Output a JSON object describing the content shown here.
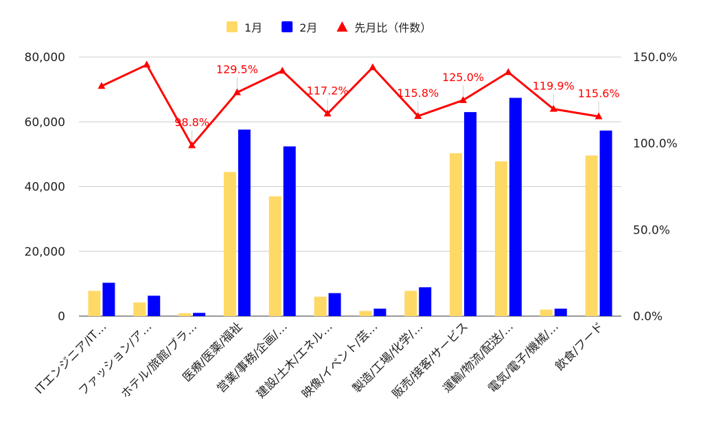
{
  "chart_data": {
    "type": "bar",
    "categories": [
      "ITエンジニア/IT…",
      "ファッション/ア…",
      "ホテル/旅館/ブラ…",
      "医療/医薬/福祉",
      "営業/事務/企画/…",
      "建設/土木/エネル…",
      "映像/イベント/芸…",
      "製造/工場/化学/…",
      "販売/接客/サービス",
      "運輸/物流/配送/…",
      "電気/電子/機械/…",
      "飲食/フード"
    ],
    "series": [
      {
        "name": "1月",
        "type": "bar",
        "axis": "left",
        "color": "#FFD966",
        "values": [
          7800,
          4200,
          900,
          44500,
          37000,
          6000,
          1600,
          7800,
          50300,
          47800,
          2000,
          49600
        ]
      },
      {
        "name": "2月",
        "type": "bar",
        "axis": "left",
        "color": "#0000FF",
        "values": [
          10300,
          6300,
          1000,
          57600,
          52400,
          7100,
          2300,
          8900,
          63000,
          67400,
          2300,
          57300
        ]
      },
      {
        "name": "先月比（件数）",
        "type": "line",
        "axis": "right",
        "color": "#FF0000",
        "values": [
          133.2,
          145.5,
          98.8,
          129.5,
          142.0,
          117.2,
          144.0,
          115.8,
          125.0,
          141.2,
          119.9,
          115.6
        ]
      }
    ],
    "data_labels": [
      "",
      "",
      "98.8%",
      "129.5%",
      "",
      "117.2%",
      "",
      "115.8%",
      "125.0%",
      "",
      "119.9%",
      "115.6%"
    ],
    "y_left": {
      "ticks": [
        "0",
        "20,000",
        "40,000",
        "60,000",
        "80,000"
      ],
      "ylim": [
        0,
        80000
      ]
    },
    "y_right": {
      "ticks": [
        "0.0%",
        "50.0%",
        "100.0%",
        "150.0%"
      ],
      "ylim": [
        0,
        150
      ]
    },
    "grid": true,
    "legend_position": "top"
  }
}
